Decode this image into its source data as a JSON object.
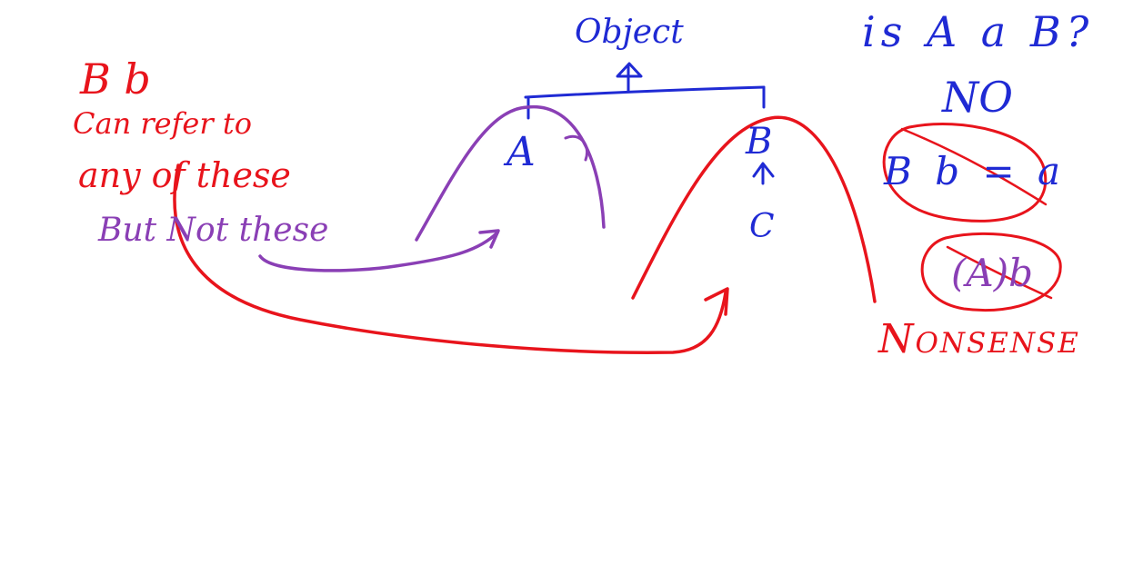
{
  "colors": {
    "red": "#e8141c",
    "blue": "#1f2ad4",
    "purple": "#8a3fb5",
    "background": "#ffffff"
  },
  "left_notes": {
    "line1": "B b",
    "line2": "Can refer to",
    "line3": "any of these",
    "line4": "But Not these"
  },
  "hierarchy": {
    "root": "Object",
    "child_a": "A",
    "child_b": "B",
    "grandchild_c": "C"
  },
  "right_notes": {
    "question": "is A a B?",
    "answer": "NO",
    "bad_assign": "B b = a",
    "bad_cast": "(A)b",
    "verdict": "Nonsense"
  }
}
